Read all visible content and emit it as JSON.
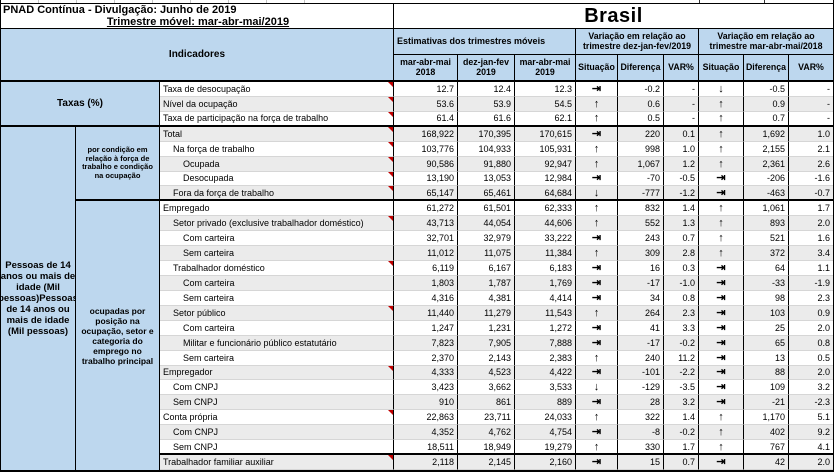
{
  "header": {
    "title_line1": "PNAD Contínua - Divulgação: Junho de 2019",
    "title_line2": "Trimestre móvel: mar-abr-mai/2019",
    "region_title": "Brasil"
  },
  "columns": {
    "indicators_label": "Indicadores",
    "groups": [
      {
        "label": "Estimativas dos trimestres móveis",
        "cols": [
          "mar-abr-mai 2018",
          "dez-jan-fev 2019",
          "mar-abr-mai 2019"
        ]
      },
      {
        "label": "Variação em relação ao trimestre dez-jan-fev/2019",
        "cols": [
          "Situação",
          "Diferença",
          "VAR%"
        ]
      },
      {
        "label": "Variação em relação ao trimestre mar-abr-mai/2018",
        "cols": [
          "Situação",
          "Diferença",
          "VAR%"
        ]
      }
    ]
  },
  "sidebar": {
    "taxas_label": "Taxas (%)",
    "pessoas_label": "Pessoas de 14 anos ou mais de idade (Mil pessoas)Pessoas de 14 anos ou mais de idade (Mil pessoas)",
    "group1_label": "por condição em relação à força de trabalho e condição na ocupação",
    "group2_label": "ocupadas por posição na ocupação, setor e categoria do emprego no trabalho principal"
  },
  "arrows": {
    "up": "↑",
    "down": "↓",
    "stable": "⇥"
  },
  "colors": {
    "header_blue": "#bdd7ee",
    "stripe_gray": "#ebebeb",
    "marker_red": "#c00000"
  },
  "table": {
    "rows": [
      {
        "label": "Taxa de desocupação",
        "indent": 0,
        "v1": "12.7",
        "v2": "12.4",
        "v3": "12.3",
        "s1": "stable",
        "d1": "-0.2",
        "p1": "-",
        "s2": "down",
        "d2": "-0.5",
        "p2": "-",
        "marker": true,
        "section_end": false
      },
      {
        "label": "Nível da ocupação",
        "indent": 0,
        "v1": "53.6",
        "v2": "53.9",
        "v3": "54.5",
        "s1": "up",
        "d1": "0.6",
        "p1": "-",
        "s2": "up",
        "d2": "0.9",
        "p2": "-",
        "marker": true,
        "section_end": false
      },
      {
        "label": "Taxa de participação na força de trabalho",
        "indent": 0,
        "v1": "61.4",
        "v2": "61.6",
        "v3": "62.1",
        "s1": "up",
        "d1": "0.5",
        "p1": "-",
        "s2": "up",
        "d2": "0.7",
        "p2": "-",
        "marker": true,
        "section_end": true
      },
      {
        "label": "Total",
        "indent": 0,
        "v1": "168,922",
        "v2": "170,395",
        "v3": "170,615",
        "s1": "stable",
        "d1": "220",
        "p1": "0.1",
        "s2": "up",
        "d2": "1,692",
        "p2": "1.0",
        "marker": true,
        "section_end": false
      },
      {
        "label": "Na força de trabalho",
        "indent": 1,
        "v1": "103,776",
        "v2": "104,933",
        "v3": "105,931",
        "s1": "up",
        "d1": "998",
        "p1": "1.0",
        "s2": "up",
        "d2": "2,155",
        "p2": "2.1",
        "marker": true,
        "section_end": false
      },
      {
        "label": "Ocupada",
        "indent": 2,
        "v1": "90,586",
        "v2": "91,880",
        "v3": "92,947",
        "s1": "up",
        "d1": "1,067",
        "p1": "1.2",
        "s2": "up",
        "d2": "2,361",
        "p2": "2.6",
        "marker": true,
        "section_end": false
      },
      {
        "label": "Desocupada",
        "indent": 2,
        "v1": "13,190",
        "v2": "13,053",
        "v3": "12,984",
        "s1": "stable",
        "d1": "-70",
        "p1": "-0.5",
        "s2": "stable",
        "d2": "-206",
        "p2": "-1.6",
        "marker": true,
        "section_end": false
      },
      {
        "label": "Fora da força de trabalho",
        "indent": 1,
        "v1": "65,147",
        "v2": "65,461",
        "v3": "64,684",
        "s1": "down",
        "d1": "-777",
        "p1": "-1.2",
        "s2": "stable",
        "d2": "-463",
        "p2": "-0.7",
        "marker": true,
        "section_end": true
      },
      {
        "label": "Empregado",
        "indent": 0,
        "v1": "61,272",
        "v2": "61,501",
        "v3": "62,333",
        "s1": "up",
        "d1": "832",
        "p1": "1.4",
        "s2": "up",
        "d2": "1,061",
        "p2": "1.7",
        "marker": false,
        "section_end": false
      },
      {
        "label": "Setor privado (exclusive trabalhador doméstico)",
        "indent": 1,
        "v1": "43,713",
        "v2": "44,054",
        "v3": "44,606",
        "s1": "up",
        "d1": "552",
        "p1": "1.3",
        "s2": "up",
        "d2": "893",
        "p2": "2.0",
        "marker": true,
        "section_end": false
      },
      {
        "label": "Com carteira",
        "indent": 2,
        "v1": "32,701",
        "v2": "32,979",
        "v3": "33,222",
        "s1": "stable",
        "d1": "243",
        "p1": "0.7",
        "s2": "up",
        "d2": "521",
        "p2": "1.6",
        "marker": false,
        "section_end": false
      },
      {
        "label": "Sem carteira",
        "indent": 2,
        "v1": "11,012",
        "v2": "11,075",
        "v3": "11,384",
        "s1": "up",
        "d1": "309",
        "p1": "2.8",
        "s2": "up",
        "d2": "372",
        "p2": "3.4",
        "marker": false,
        "section_end": false
      },
      {
        "label": "Trabalhador doméstico",
        "indent": 1,
        "v1": "6,119",
        "v2": "6,167",
        "v3": "6,183",
        "s1": "stable",
        "d1": "16",
        "p1": "0.3",
        "s2": "stable",
        "d2": "64",
        "p2": "1.1",
        "marker": true,
        "section_end": false
      },
      {
        "label": "Com carteira",
        "indent": 2,
        "v1": "1,803",
        "v2": "1,787",
        "v3": "1,769",
        "s1": "stable",
        "d1": "-17",
        "p1": "-1.0",
        "s2": "stable",
        "d2": "-33",
        "p2": "-1.9",
        "marker": false,
        "section_end": false
      },
      {
        "label": "Sem carteira",
        "indent": 2,
        "v1": "4,316",
        "v2": "4,381",
        "v3": "4,414",
        "s1": "stable",
        "d1": "34",
        "p1": "0.8",
        "s2": "stable",
        "d2": "98",
        "p2": "2.3",
        "marker": false,
        "section_end": false
      },
      {
        "label": "Setor público",
        "indent": 1,
        "v1": "11,440",
        "v2": "11,279",
        "v3": "11,543",
        "s1": "up",
        "d1": "264",
        "p1": "2.3",
        "s2": "stable",
        "d2": "103",
        "p2": "0.9",
        "marker": true,
        "section_end": false
      },
      {
        "label": "Com carteira",
        "indent": 2,
        "v1": "1,247",
        "v2": "1,231",
        "v3": "1,272",
        "s1": "stable",
        "d1": "41",
        "p1": "3.3",
        "s2": "stable",
        "d2": "25",
        "p2": "2.0",
        "marker": false,
        "section_end": false
      },
      {
        "label": "Militar e funcionário público estatutário",
        "indent": 2,
        "v1": "7,823",
        "v2": "7,905",
        "v3": "7,888",
        "s1": "stable",
        "d1": "-17",
        "p1": "-0.2",
        "s2": "stable",
        "d2": "65",
        "p2": "0.8",
        "marker": false,
        "section_end": false
      },
      {
        "label": "Sem carteira",
        "indent": 2,
        "v1": "2,370",
        "v2": "2,143",
        "v3": "2,383",
        "s1": "up",
        "d1": "240",
        "p1": "11.2",
        "s2": "stable",
        "d2": "13",
        "p2": "0.5",
        "marker": false,
        "section_end": false
      },
      {
        "label": "Empregador",
        "indent": 0,
        "v1": "4,333",
        "v2": "4,523",
        "v3": "4,422",
        "s1": "stable",
        "d1": "-101",
        "p1": "-2.2",
        "s2": "stable",
        "d2": "88",
        "p2": "2.0",
        "marker": true,
        "section_end": false
      },
      {
        "label": "Com CNPJ",
        "indent": 1,
        "v1": "3,423",
        "v2": "3,662",
        "v3": "3,533",
        "s1": "down",
        "d1": "-129",
        "p1": "-3.5",
        "s2": "stable",
        "d2": "109",
        "p2": "3.2",
        "marker": false,
        "section_end": false
      },
      {
        "label": "Sem CNPJ",
        "indent": 1,
        "v1": "910",
        "v2": "861",
        "v3": "889",
        "s1": "stable",
        "d1": "28",
        "p1": "3.2",
        "s2": "stable",
        "d2": "-21",
        "p2": "-2.3",
        "marker": false,
        "section_end": false
      },
      {
        "label": "Conta própria",
        "indent": 0,
        "v1": "22,863",
        "v2": "23,711",
        "v3": "24,033",
        "s1": "up",
        "d1": "322",
        "p1": "1.4",
        "s2": "up",
        "d2": "1,170",
        "p2": "5.1",
        "marker": true,
        "section_end": false
      },
      {
        "label": "Com CNPJ",
        "indent": 1,
        "v1": "4,352",
        "v2": "4,762",
        "v3": "4,754",
        "s1": "stable",
        "d1": "-8",
        "p1": "-0.2",
        "s2": "up",
        "d2": "402",
        "p2": "9.2",
        "marker": false,
        "section_end": false
      },
      {
        "label": "Sem CNPJ",
        "indent": 1,
        "v1": "18,511",
        "v2": "18,949",
        "v3": "19,279",
        "s1": "up",
        "d1": "330",
        "p1": "1.7",
        "s2": "up",
        "d2": "767",
        "p2": "4.1",
        "marker": false,
        "section_end": true
      },
      {
        "label": "Trabalhador familiar auxiliar",
        "indent": 0,
        "v1": "2,118",
        "v2": "2,145",
        "v3": "2,160",
        "s1": "stable",
        "d1": "15",
        "p1": "0.7",
        "s2": "stable",
        "d2": "42",
        "p2": "2.0",
        "marker": true,
        "section_end": false
      }
    ]
  }
}
